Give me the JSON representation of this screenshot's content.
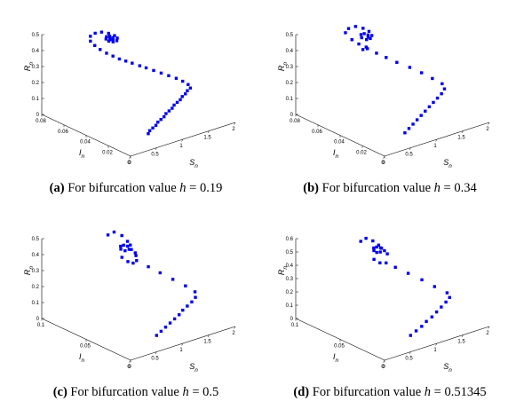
{
  "chart_data": [
    {
      "type": "scatter",
      "caption_tag": "(a)",
      "caption_text": " For bifurcation value ",
      "caption_var": "h",
      "caption_value": " = 0.19",
      "axes": {
        "S": "S",
        "I": "I",
        "R": "R",
        "sub": "n"
      },
      "xlim": [
        0,
        2
      ],
      "ylim": [
        0,
        0.08
      ],
      "zlim": [
        0,
        0.5
      ],
      "s_ticks": [
        "0",
        "0.5",
        "1",
        "1.5",
        "2"
      ],
      "i_ticks": [
        "0",
        "0.02",
        "0.04",
        "0.06",
        "0.08"
      ],
      "r_ticks": [
        "0",
        "0.1",
        "0.2",
        "0.3",
        "0.4",
        "0.5"
      ],
      "marker_color": "#0000ee",
      "points": [
        [
          0.55,
          0.01,
          0.05
        ],
        [
          0.62,
          0.012,
          0.055
        ],
        [
          0.7,
          0.013,
          0.06
        ],
        [
          0.78,
          0.014,
          0.065
        ],
        [
          0.86,
          0.016,
          0.07
        ],
        [
          0.94,
          0.017,
          0.075
        ],
        [
          1.02,
          0.018,
          0.08
        ],
        [
          1.1,
          0.02,
          0.085
        ],
        [
          1.18,
          0.021,
          0.09
        ],
        [
          1.26,
          0.022,
          0.095
        ],
        [
          1.34,
          0.024,
          0.1
        ],
        [
          1.42,
          0.025,
          0.105
        ],
        [
          1.5,
          0.026,
          0.11
        ],
        [
          1.58,
          0.028,
          0.115
        ],
        [
          1.66,
          0.029,
          0.12
        ],
        [
          1.74,
          0.031,
          0.125
        ],
        [
          1.82,
          0.032,
          0.13
        ],
        [
          1.84,
          0.035,
          0.14
        ],
        [
          1.8,
          0.038,
          0.155
        ],
        [
          1.74,
          0.041,
          0.17
        ],
        [
          1.66,
          0.044,
          0.185
        ],
        [
          1.58,
          0.047,
          0.2
        ],
        [
          1.5,
          0.05,
          0.215
        ],
        [
          1.42,
          0.053,
          0.23
        ],
        [
          1.34,
          0.055,
          0.245
        ],
        [
          1.26,
          0.058,
          0.26
        ],
        [
          1.18,
          0.06,
          0.275
        ],
        [
          1.1,
          0.062,
          0.29
        ],
        [
          1.02,
          0.064,
          0.31
        ],
        [
          0.94,
          0.066,
          0.33
        ],
        [
          0.86,
          0.068,
          0.355
        ],
        [
          0.8,
          0.07,
          0.38
        ],
        [
          0.76,
          0.072,
          0.405
        ],
        [
          0.78,
          0.073,
          0.43
        ],
        [
          0.85,
          0.072,
          0.445
        ],
        [
          0.93,
          0.07,
          0.45
        ],
        [
          1.0,
          0.067,
          0.445
        ],
        [
          1.05,
          0.064,
          0.435
        ],
        [
          1.06,
          0.062,
          0.425
        ],
        [
          1.03,
          0.061,
          0.415
        ],
        [
          0.98,
          0.062,
          0.41
        ],
        [
          0.94,
          0.064,
          0.412
        ],
        [
          0.93,
          0.066,
          0.42
        ],
        [
          0.96,
          0.067,
          0.428
        ],
        [
          1.0,
          0.066,
          0.43
        ],
        [
          1.02,
          0.064,
          0.425
        ],
        [
          1.0,
          0.063,
          0.418
        ],
        [
          0.97,
          0.064,
          0.418
        ],
        [
          0.98,
          0.065,
          0.422
        ]
      ]
    },
    {
      "type": "scatter",
      "caption_tag": "(b)",
      "caption_text": " For bifurcation value ",
      "caption_var": "h",
      "caption_value": " = 0.34",
      "axes": {
        "S": "S",
        "I": "I",
        "R": "R",
        "sub": "n"
      },
      "xlim": [
        0,
        2
      ],
      "ylim": [
        0,
        0.08
      ],
      "zlim": [
        0,
        0.5
      ],
      "s_ticks": [
        "0",
        "0.5",
        "1",
        "1.5",
        "2"
      ],
      "i_ticks": [
        "0",
        "0.02",
        "0.04",
        "0.06",
        "0.08"
      ],
      "r_ticks": [
        "0",
        "0.1",
        "0.2",
        "0.3",
        "0.4",
        "0.5"
      ],
      "marker_color": "#0000ee",
      "points": [
        [
          0.6,
          0.01,
          0.05
        ],
        [
          0.72,
          0.012,
          0.058
        ],
        [
          0.84,
          0.014,
          0.066
        ],
        [
          0.96,
          0.016,
          0.074
        ],
        [
          1.08,
          0.018,
          0.082
        ],
        [
          1.2,
          0.02,
          0.09
        ],
        [
          1.32,
          0.022,
          0.098
        ],
        [
          1.44,
          0.024,
          0.106
        ],
        [
          1.56,
          0.026,
          0.114
        ],
        [
          1.68,
          0.028,
          0.122
        ],
        [
          1.8,
          0.031,
          0.13
        ],
        [
          1.84,
          0.035,
          0.145
        ],
        [
          1.76,
          0.04,
          0.17
        ],
        [
          1.66,
          0.045,
          0.2
        ],
        [
          1.54,
          0.05,
          0.23
        ],
        [
          1.4,
          0.055,
          0.26
        ],
        [
          1.28,
          0.059,
          0.29
        ],
        [
          1.16,
          0.062,
          0.32
        ],
        [
          1.05,
          0.065,
          0.35
        ],
        [
          0.95,
          0.068,
          0.38
        ],
        [
          0.86,
          0.07,
          0.41
        ],
        [
          0.8,
          0.073,
          0.45
        ],
        [
          0.86,
          0.073,
          0.47
        ],
        [
          0.95,
          0.071,
          0.48
        ],
        [
          1.03,
          0.068,
          0.47
        ],
        [
          1.08,
          0.065,
          0.455
        ],
        [
          1.07,
          0.062,
          0.44
        ],
        [
          1.02,
          0.061,
          0.43
        ],
        [
          0.97,
          0.062,
          0.425
        ],
        [
          0.94,
          0.065,
          0.43
        ],
        [
          0.97,
          0.067,
          0.44
        ],
        [
          1.01,
          0.066,
          0.445
        ],
        [
          1.04,
          0.064,
          0.44
        ],
        [
          1.02,
          0.063,
          0.432
        ],
        [
          0.92,
          0.06,
          0.39
        ],
        [
          0.9,
          0.062,
          0.37
        ]
      ]
    },
    {
      "type": "scatter",
      "caption_tag": "(c)",
      "caption_text": " For bifurcation value ",
      "caption_var": "h",
      "caption_value": " = 0.5",
      "axes": {
        "S": "S",
        "I": "I",
        "R": "R",
        "sub": "n"
      },
      "xlim": [
        0,
        2
      ],
      "ylim": [
        0,
        0.1
      ],
      "zlim": [
        0,
        0.5
      ],
      "s_ticks": [
        "0",
        "0.5",
        "1",
        "1.5",
        "2"
      ],
      "i_ticks": [
        "0",
        "0.05",
        "0.1"
      ],
      "r_ticks": [
        "0",
        "0.1",
        "0.2",
        "0.3",
        "0.4",
        "0.5"
      ],
      "marker_color": "#0000ee",
      "points": [
        [
          0.7,
          0.012,
          0.05
        ],
        [
          0.82,
          0.014,
          0.058
        ],
        [
          0.94,
          0.016,
          0.066
        ],
        [
          1.06,
          0.018,
          0.074
        ],
        [
          1.18,
          0.02,
          0.082
        ],
        [
          1.3,
          0.022,
          0.09
        ],
        [
          1.42,
          0.025,
          0.098
        ],
        [
          1.54,
          0.027,
          0.106
        ],
        [
          1.66,
          0.029,
          0.114
        ],
        [
          1.78,
          0.032,
          0.122
        ],
        [
          1.84,
          0.036,
          0.14
        ],
        [
          1.76,
          0.042,
          0.17
        ],
        [
          1.62,
          0.048,
          0.21
        ],
        [
          1.48,
          0.054,
          0.25
        ],
        [
          1.34,
          0.059,
          0.29
        ],
        [
          1.2,
          0.064,
          0.33
        ],
        [
          0.84,
          0.075,
          0.5
        ],
        [
          0.94,
          0.074,
          0.51
        ],
        [
          1.02,
          0.07,
          0.49
        ],
        [
          1.06,
          0.066,
          0.46
        ],
        [
          1.08,
          0.064,
          0.44
        ],
        [
          1.04,
          0.063,
          0.42
        ],
        [
          0.98,
          0.064,
          0.415
        ],
        [
          0.95,
          0.067,
          0.42
        ],
        [
          0.98,
          0.069,
          0.43
        ],
        [
          1.02,
          0.068,
          0.435
        ],
        [
          1.06,
          0.066,
          0.43
        ],
        [
          1.1,
          0.064,
          0.41
        ],
        [
          1.14,
          0.062,
          0.39
        ],
        [
          1.12,
          0.06,
          0.38
        ],
        [
          0.92,
          0.064,
          0.38
        ],
        [
          1.0,
          0.062,
          0.35
        ],
        [
          1.1,
          0.062,
          0.33
        ]
      ]
    },
    {
      "type": "scatter",
      "caption_tag": "(d)",
      "caption_text": " For bifurcation value ",
      "caption_var": "h",
      "caption_value": " = 0.51345",
      "axes": {
        "S": "S",
        "I": "I",
        "R": "R",
        "sub": "n"
      },
      "xlim": [
        0,
        2
      ],
      "ylim": [
        0,
        0.1
      ],
      "zlim": [
        0,
        0.6
      ],
      "s_ticks": [
        "0",
        "0.5",
        "1",
        "1.5",
        "2"
      ],
      "i_ticks": [
        "0",
        "0.05",
        "0.1"
      ],
      "r_ticks": [
        "0",
        "0.1",
        "0.2",
        "0.3",
        "0.4",
        "0.5",
        "0.6"
      ],
      "marker_color": "#0000ee",
      "points": [
        [
          0.7,
          0.012,
          0.06
        ],
        [
          0.84,
          0.014,
          0.07
        ],
        [
          0.98,
          0.016,
          0.08
        ],
        [
          1.12,
          0.019,
          0.09
        ],
        [
          1.26,
          0.021,
          0.1
        ],
        [
          1.4,
          0.024,
          0.11
        ],
        [
          1.54,
          0.027,
          0.12
        ],
        [
          1.68,
          0.03,
          0.13
        ],
        [
          1.8,
          0.033,
          0.14
        ],
        [
          1.82,
          0.037,
          0.16
        ],
        [
          1.7,
          0.044,
          0.2
        ],
        [
          1.56,
          0.05,
          0.25
        ],
        [
          1.4,
          0.056,
          0.3
        ],
        [
          1.24,
          0.061,
          0.35
        ],
        [
          0.8,
          0.074,
          0.56
        ],
        [
          0.9,
          0.074,
          0.57
        ],
        [
          0.98,
          0.071,
          0.55
        ],
        [
          1.04,
          0.068,
          0.52
        ],
        [
          1.06,
          0.066,
          0.5
        ],
        [
          1.02,
          0.065,
          0.48
        ],
        [
          0.97,
          0.066,
          0.48
        ],
        [
          0.95,
          0.068,
          0.49
        ],
        [
          0.98,
          0.07,
          0.5
        ],
        [
          1.02,
          0.069,
          0.505
        ],
        [
          1.06,
          0.067,
          0.5
        ],
        [
          1.1,
          0.065,
          0.48
        ],
        [
          1.12,
          0.063,
          0.46
        ],
        [
          0.9,
          0.065,
          0.44
        ],
        [
          0.98,
          0.063,
          0.41
        ],
        [
          1.08,
          0.062,
          0.4
        ]
      ]
    }
  ]
}
